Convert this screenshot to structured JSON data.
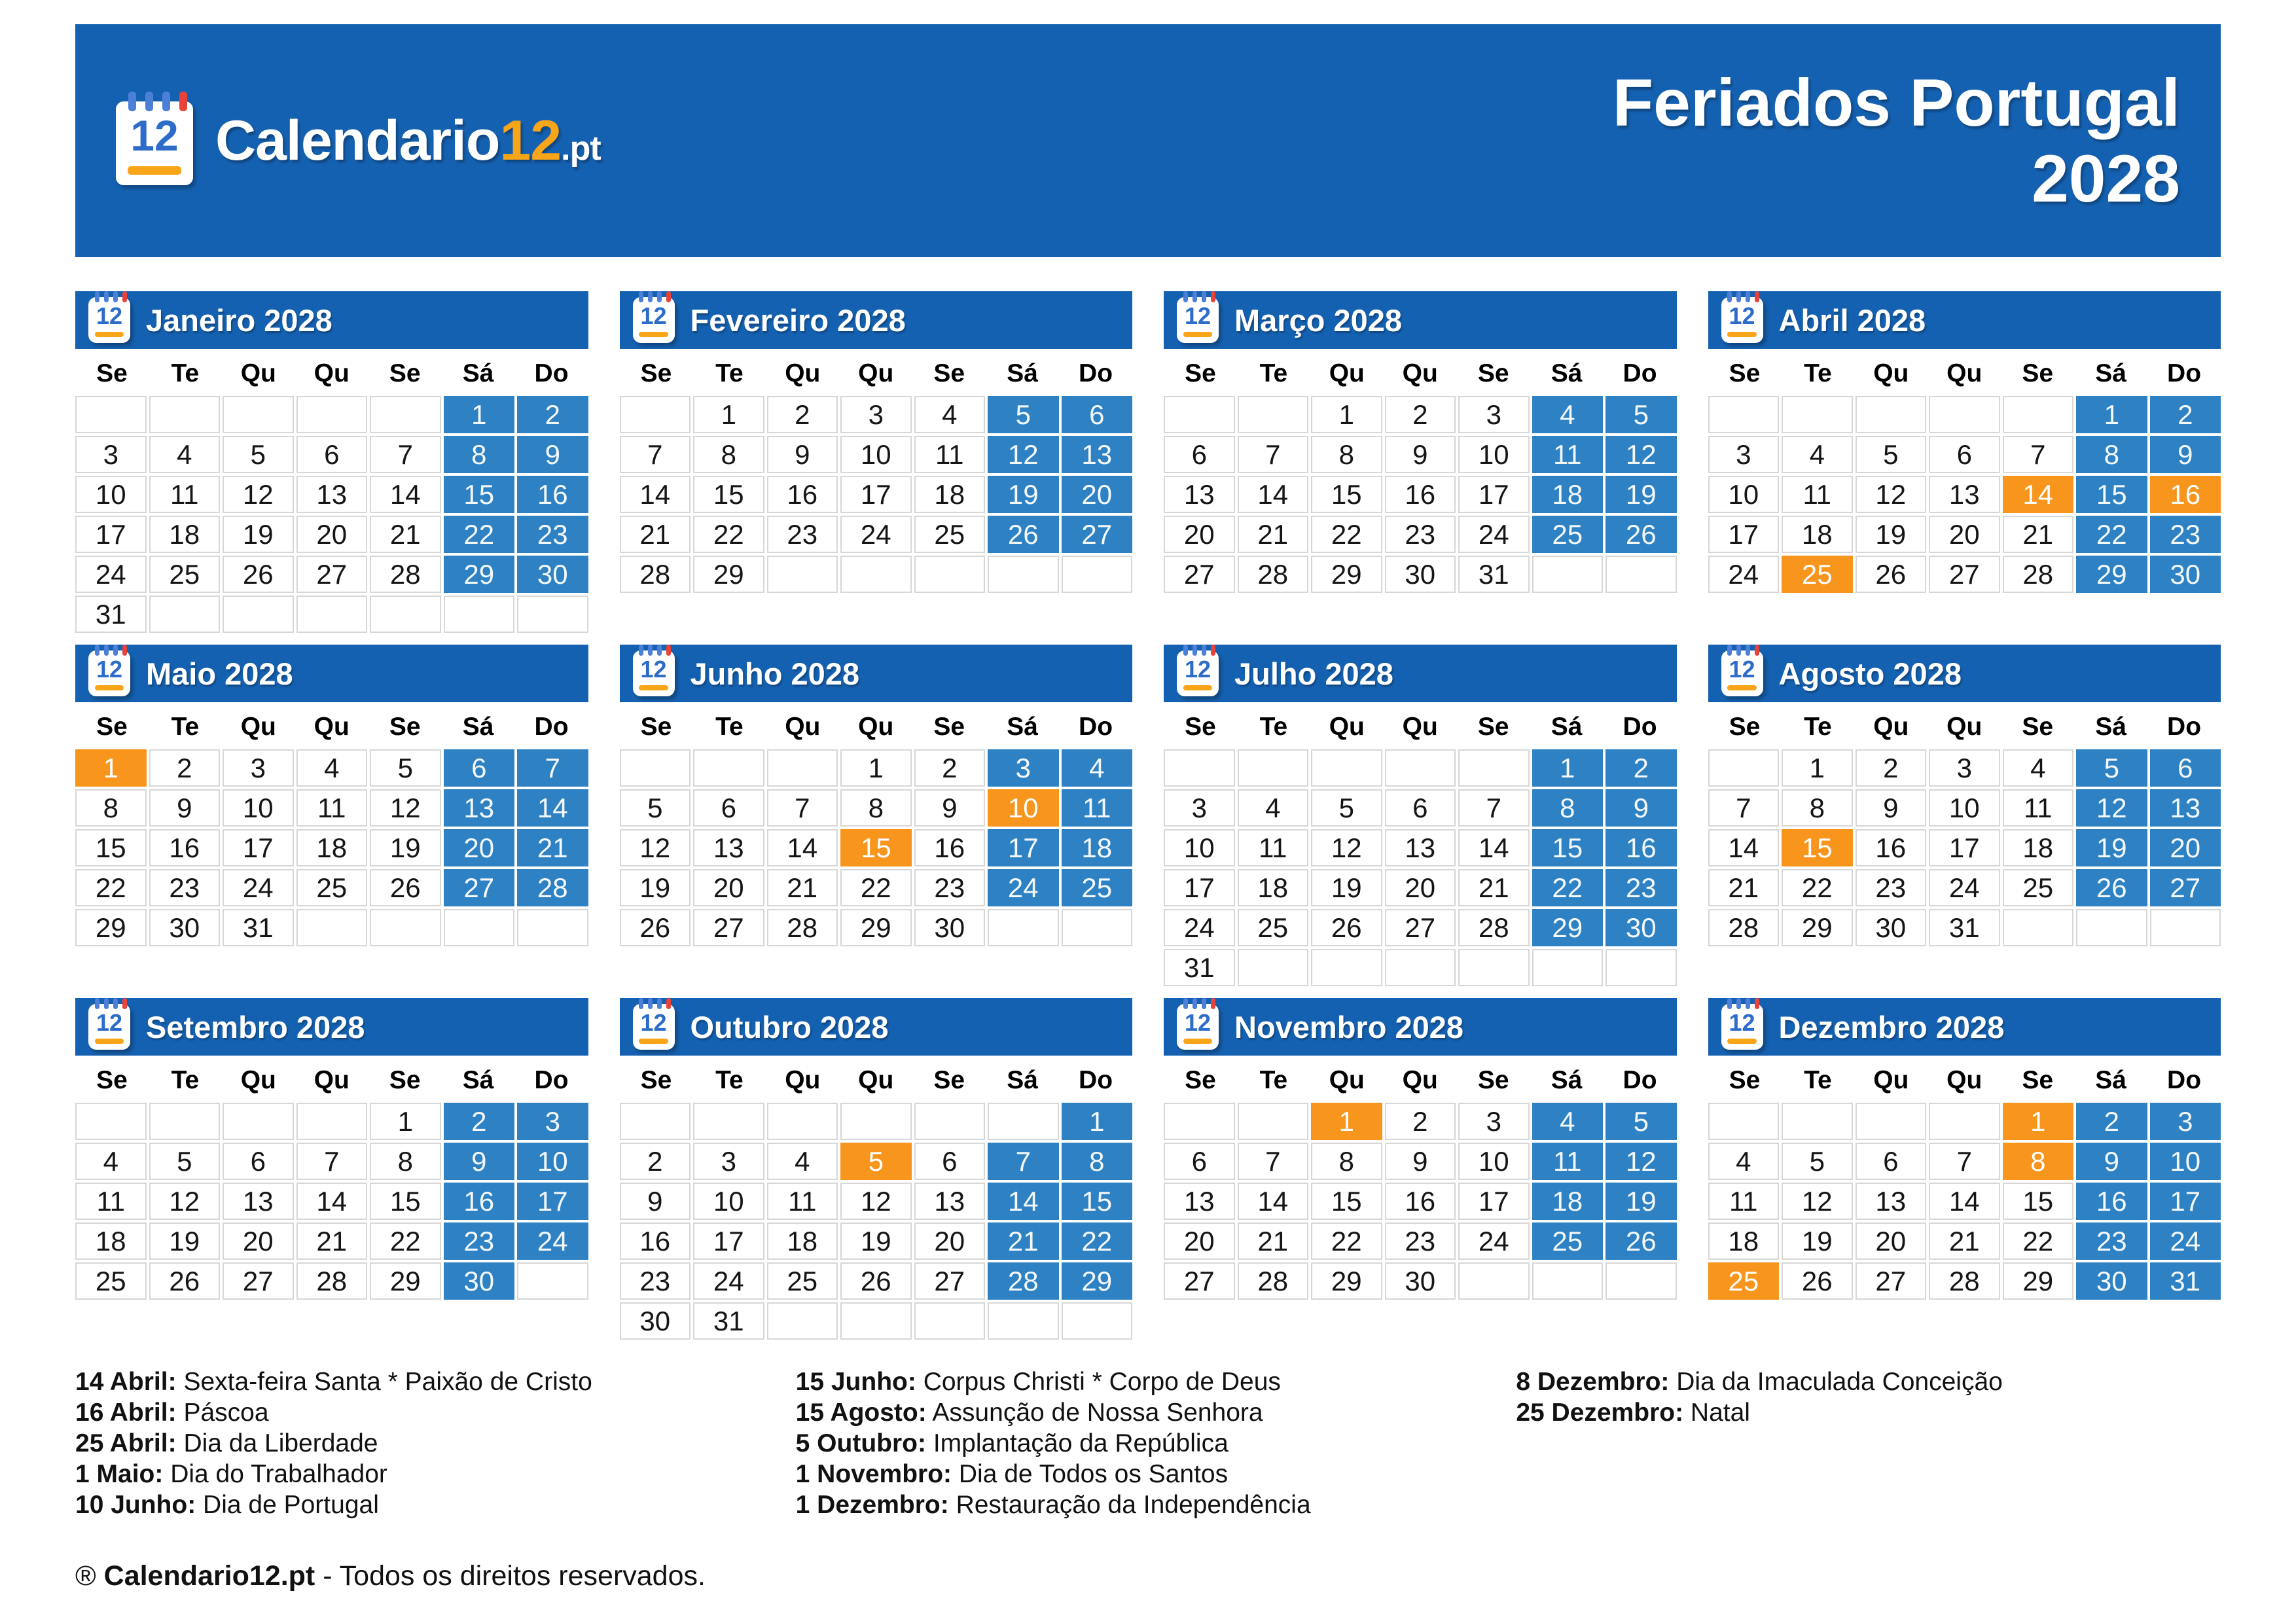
{
  "banner": {
    "background": "#1561b1",
    "logo": {
      "icon_number": "12",
      "brand": "Calendario",
      "brand_number": "12",
      "tld": ".pt"
    },
    "title_line1": "Feriados Portugal",
    "title_line2": "2028"
  },
  "calendar": {
    "weekday_labels": [
      "Se",
      "Te",
      "Qu",
      "Qu",
      "Se",
      "Sá",
      "Do"
    ],
    "weekend_columns": [
      5,
      6
    ],
    "icon_number": "12",
    "colors": {
      "month_header_blue": "#1561b1",
      "weekend_blue": "#2e82c3",
      "holiday_orange": "#f7951d",
      "grid_line": "#d7d7d7"
    },
    "months": [
      {
        "name": "Janeiro 2028",
        "first_col": 5,
        "days": 31,
        "holidays": []
      },
      {
        "name": "Fevereiro 2028",
        "first_col": 1,
        "days": 29,
        "holidays": []
      },
      {
        "name": "Março 2028",
        "first_col": 2,
        "days": 31,
        "holidays": []
      },
      {
        "name": "Abril 2028",
        "first_col": 5,
        "days": 30,
        "holidays": [
          14,
          16,
          25
        ]
      },
      {
        "name": "Maio 2028",
        "first_col": 0,
        "days": 31,
        "holidays": [
          1
        ]
      },
      {
        "name": "Junho 2028",
        "first_col": 3,
        "days": 30,
        "holidays": [
          10,
          15
        ]
      },
      {
        "name": "Julho 2028",
        "first_col": 5,
        "days": 31,
        "holidays": []
      },
      {
        "name": "Agosto 2028",
        "first_col": 1,
        "days": 31,
        "holidays": [
          15
        ]
      },
      {
        "name": "Setembro 2028",
        "first_col": 4,
        "days": 30,
        "holidays": []
      },
      {
        "name": "Outubro 2028",
        "first_col": 6,
        "days": 31,
        "holidays": [
          5
        ]
      },
      {
        "name": "Novembro 2028",
        "first_col": 2,
        "days": 30,
        "holidays": [
          1
        ]
      },
      {
        "name": "Dezembro 2028",
        "first_col": 4,
        "days": 31,
        "holidays": [
          1,
          8,
          25
        ]
      }
    ]
  },
  "legend": {
    "columns": [
      [
        {
          "date": "14 Abril:",
          "name": "Sexta-feira Santa * Paixão de Cristo"
        },
        {
          "date": "16 Abril:",
          "name": "Páscoa"
        },
        {
          "date": "25 Abril:",
          "name": "Dia da Liberdade"
        },
        {
          "date": "1 Maio:",
          "name": "Dia do Trabalhador"
        },
        {
          "date": "10 Junho:",
          "name": "Dia de Portugal"
        }
      ],
      [
        {
          "date": "15 Junho:",
          "name": "Corpus Christi * Corpo de Deus"
        },
        {
          "date": "15 Agosto:",
          "name": "Assunção de Nossa Senhora"
        },
        {
          "date": "5 Outubro:",
          "name": "Implantação da República"
        },
        {
          "date": "1 Novembro:",
          "name": "Dia de Todos os Santos"
        },
        {
          "date": "1 Dezembro:",
          "name": "Restauração da Independência"
        }
      ],
      [
        {
          "date": "8 Dezembro:",
          "name": "Dia da Imaculada Conceição"
        },
        {
          "date": "25 Dezembro:",
          "name": "Natal"
        }
      ]
    ]
  },
  "footer": {
    "mark": "®",
    "brand": "Calendario12.pt",
    "suffix": "- Todos os direitos reservados."
  }
}
